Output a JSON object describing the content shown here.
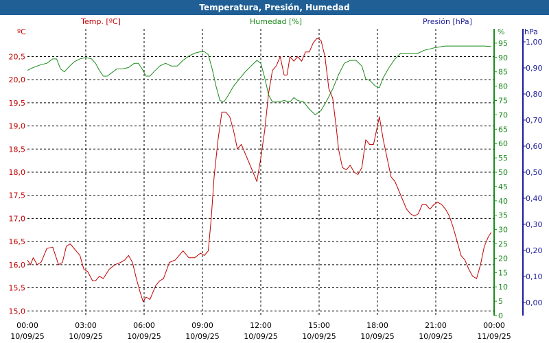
{
  "chart_data": {
    "type": "line",
    "title": "Temperatura, Presión, Humedad",
    "x_ticks": [
      {
        "time": "00:00",
        "date": "10/09/25"
      },
      {
        "time": "03:00",
        "date": "10/09/25"
      },
      {
        "time": "06:00",
        "date": "10/09/25"
      },
      {
        "time": "09:00",
        "date": "10/09/25"
      },
      {
        "time": "12:00",
        "date": "10/09/25"
      },
      {
        "time": "15:00",
        "date": "10/09/25"
      },
      {
        "time": "18:00",
        "date": "10/09/25"
      },
      {
        "time": "21:00",
        "date": "10/09/25"
      },
      {
        "time": "00:00",
        "date": "11/09/25"
      }
    ],
    "x_range_hours": [
      0,
      24
    ],
    "grid": true,
    "axes": {
      "temperature": {
        "label": "Temp. [ºC]",
        "unit": "ºC",
        "color": "#c00000",
        "range": [
          14.9,
          21.1
        ],
        "ticks": [
          "15,0",
          "15,5",
          "16,0",
          "16,5",
          "17,0",
          "17,5",
          "18,0",
          "18,5",
          "19,0",
          "19,5",
          "20,0",
          "20,5"
        ],
        "tick_values": [
          15.0,
          15.5,
          16.0,
          16.5,
          17.0,
          17.5,
          18.0,
          18.5,
          19.0,
          19.5,
          20.0,
          20.5
        ]
      },
      "humidity": {
        "label": "Humedad [%]",
        "unit": "%",
        "color": "#1a8a1a",
        "range": [
          0,
          100
        ],
        "ticks": [
          "0",
          "5",
          "10",
          "15",
          "20",
          "25",
          "30",
          "35",
          "40",
          "45",
          "50",
          "55",
          "60",
          "65",
          "70",
          "75",
          "80",
          "85",
          "90",
          "95"
        ],
        "tick_values": [
          0,
          5,
          10,
          15,
          20,
          25,
          30,
          35,
          40,
          45,
          50,
          55,
          60,
          65,
          70,
          75,
          80,
          85,
          90,
          95
        ]
      },
      "pressure": {
        "label": "Presión [hPa]",
        "unit": "hPa",
        "color": "#1a1a9a",
        "range": [
          -0.05,
          1.05
        ],
        "ticks": [
          "0,00",
          "0,10",
          "0,20",
          "0,30",
          "0,40",
          "0,50",
          "0,60",
          "0,70",
          "0,80",
          "0,90",
          "1,00"
        ],
        "tick_values": [
          0,
          0.1,
          0.2,
          0.3,
          0.4,
          0.5,
          0.6,
          0.7,
          0.8,
          0.9,
          1.0
        ]
      }
    },
    "series": [
      {
        "name": "Temp. [ºC]",
        "axis": "temperature",
        "points": [
          [
            0,
            16.1
          ],
          [
            0.15,
            16.0
          ],
          [
            0.3,
            16.15
          ],
          [
            0.5,
            16.0
          ],
          [
            0.7,
            16.05
          ],
          [
            1.0,
            16.35
          ],
          [
            1.3,
            16.38
          ],
          [
            1.6,
            16.0
          ],
          [
            1.8,
            16.05
          ],
          [
            2.0,
            16.4
          ],
          [
            2.2,
            16.45
          ],
          [
            2.5,
            16.3
          ],
          [
            2.7,
            16.2
          ],
          [
            2.9,
            15.9
          ],
          [
            3.1,
            15.85
          ],
          [
            3.35,
            15.65
          ],
          [
            3.5,
            15.65
          ],
          [
            3.7,
            15.75
          ],
          [
            3.9,
            15.7
          ],
          [
            4.2,
            15.9
          ],
          [
            4.5,
            16.0
          ],
          [
            4.8,
            16.05
          ],
          [
            5.0,
            16.1
          ],
          [
            5.2,
            16.2
          ],
          [
            5.4,
            16.05
          ],
          [
            5.6,
            15.7
          ],
          [
            5.8,
            15.4
          ],
          [
            5.95,
            15.2
          ],
          [
            6.1,
            15.3
          ],
          [
            6.3,
            15.25
          ],
          [
            6.6,
            15.55
          ],
          [
            6.8,
            15.65
          ],
          [
            7.0,
            15.7
          ],
          [
            7.3,
            16.05
          ],
          [
            7.6,
            16.1
          ],
          [
            7.8,
            16.2
          ],
          [
            8.0,
            16.3
          ],
          [
            8.3,
            16.15
          ],
          [
            8.6,
            16.15
          ],
          [
            8.9,
            16.25
          ],
          [
            9.1,
            16.2
          ],
          [
            9.3,
            16.3
          ],
          [
            9.45,
            17.0
          ],
          [
            9.6,
            17.9
          ],
          [
            9.8,
            18.7
          ],
          [
            10.0,
            19.3
          ],
          [
            10.2,
            19.3
          ],
          [
            10.4,
            19.2
          ],
          [
            10.6,
            18.9
          ],
          [
            10.8,
            18.5
          ],
          [
            11.0,
            18.6
          ],
          [
            11.3,
            18.3
          ],
          [
            11.6,
            18.0
          ],
          [
            11.8,
            17.8
          ],
          [
            12.0,
            18.3
          ],
          [
            12.2,
            18.9
          ],
          [
            12.4,
            19.7
          ],
          [
            12.6,
            20.2
          ],
          [
            12.8,
            20.3
          ],
          [
            13.0,
            20.5
          ],
          [
            13.2,
            20.1
          ],
          [
            13.35,
            20.1
          ],
          [
            13.5,
            20.5
          ],
          [
            13.7,
            20.4
          ],
          [
            13.9,
            20.5
          ],
          [
            14.1,
            20.4
          ],
          [
            14.3,
            20.6
          ],
          [
            14.5,
            20.6
          ],
          [
            14.7,
            20.8
          ],
          [
            14.9,
            20.9
          ],
          [
            15.1,
            20.85
          ],
          [
            15.3,
            20.5
          ],
          [
            15.5,
            19.8
          ],
          [
            15.7,
            19.6
          ],
          [
            15.9,
            18.9
          ],
          [
            16.0,
            18.5
          ],
          [
            16.2,
            18.1
          ],
          [
            16.4,
            18.05
          ],
          [
            16.6,
            18.15
          ],
          [
            16.8,
            18.0
          ],
          [
            17.0,
            17.95
          ],
          [
            17.2,
            18.1
          ],
          [
            17.4,
            18.7
          ],
          [
            17.6,
            18.6
          ],
          [
            17.8,
            18.6
          ],
          [
            18.0,
            19.0
          ],
          [
            18.1,
            19.2
          ],
          [
            18.3,
            18.7
          ],
          [
            18.5,
            18.3
          ],
          [
            18.7,
            17.9
          ],
          [
            18.9,
            17.8
          ],
          [
            19.1,
            17.6
          ],
          [
            19.3,
            17.4
          ],
          [
            19.5,
            17.2
          ],
          [
            19.7,
            17.1
          ],
          [
            19.9,
            17.05
          ],
          [
            20.1,
            17.1
          ],
          [
            20.3,
            17.3
          ],
          [
            20.5,
            17.3
          ],
          [
            20.7,
            17.2
          ],
          [
            20.9,
            17.3
          ],
          [
            21.1,
            17.35
          ],
          [
            21.3,
            17.3
          ],
          [
            21.5,
            17.2
          ],
          [
            21.7,
            17.05
          ],
          [
            21.9,
            16.8
          ],
          [
            22.1,
            16.5
          ],
          [
            22.3,
            16.2
          ],
          [
            22.5,
            16.1
          ],
          [
            22.7,
            15.9
          ],
          [
            22.9,
            15.75
          ],
          [
            23.1,
            15.7
          ],
          [
            23.3,
            16.0
          ],
          [
            23.5,
            16.4
          ],
          [
            23.7,
            16.6
          ],
          [
            23.85,
            16.7
          ]
        ]
      },
      {
        "name": "Humedad [%]",
        "axis": "humidity",
        "points": [
          [
            0,
            85.5
          ],
          [
            0.3,
            86.5
          ],
          [
            0.7,
            87.5
          ],
          [
            1.0,
            88.0
          ],
          [
            1.3,
            89.5
          ],
          [
            1.5,
            89.5
          ],
          [
            1.7,
            86.0
          ],
          [
            1.9,
            85.0
          ],
          [
            2.1,
            86.5
          ],
          [
            2.4,
            88.5
          ],
          [
            2.7,
            89.5
          ],
          [
            3.0,
            90.0
          ],
          [
            3.3,
            89.5
          ],
          [
            3.5,
            88.0
          ],
          [
            3.7,
            85.5
          ],
          [
            3.9,
            83.5
          ],
          [
            4.1,
            83.5
          ],
          [
            4.3,
            84.5
          ],
          [
            4.6,
            86.0
          ],
          [
            4.9,
            86.0
          ],
          [
            5.2,
            86.5
          ],
          [
            5.5,
            88.0
          ],
          [
            5.7,
            88.0
          ],
          [
            5.9,
            86.0
          ],
          [
            6.1,
            83.5
          ],
          [
            6.3,
            83.5
          ],
          [
            6.5,
            85.0
          ],
          [
            6.8,
            87.0
          ],
          [
            7.1,
            88.0
          ],
          [
            7.4,
            87.0
          ],
          [
            7.7,
            87.0
          ],
          [
            8.0,
            89.0
          ],
          [
            8.3,
            90.5
          ],
          [
            8.6,
            91.5
          ],
          [
            8.9,
            92.0
          ],
          [
            9.1,
            92.0
          ],
          [
            9.3,
            91.0
          ],
          [
            9.5,
            86.0
          ],
          [
            9.7,
            80.0
          ],
          [
            9.9,
            75.0
          ],
          [
            10.1,
            74.5
          ],
          [
            10.3,
            76.5
          ],
          [
            10.6,
            80.0
          ],
          [
            10.9,
            82.5
          ],
          [
            11.2,
            85.0
          ],
          [
            11.5,
            87.0
          ],
          [
            11.8,
            89.0
          ],
          [
            12.0,
            88.0
          ],
          [
            12.2,
            83.0
          ],
          [
            12.4,
            77.0
          ],
          [
            12.6,
            74.5
          ],
          [
            12.9,
            74.5
          ],
          [
            13.2,
            75.0
          ],
          [
            13.5,
            74.5
          ],
          [
            13.7,
            76.0
          ],
          [
            13.9,
            75.0
          ],
          [
            14.2,
            74.5
          ],
          [
            14.5,
            72.0
          ],
          [
            14.8,
            70.0
          ],
          [
            15.1,
            71.5
          ],
          [
            15.4,
            75.0
          ],
          [
            15.7,
            79.0
          ],
          [
            16.0,
            84.0
          ],
          [
            16.3,
            88.0
          ],
          [
            16.6,
            89.0
          ],
          [
            16.9,
            89.0
          ],
          [
            17.2,
            87.0
          ],
          [
            17.4,
            82.5
          ],
          [
            17.6,
            82.0
          ],
          [
            17.9,
            80.0
          ],
          [
            18.1,
            79.5
          ],
          [
            18.3,
            83.0
          ],
          [
            18.6,
            86.5
          ],
          [
            18.9,
            89.5
          ],
          [
            19.2,
            91.5
          ],
          [
            19.5,
            91.5
          ],
          [
            19.8,
            91.5
          ],
          [
            20.1,
            91.5
          ],
          [
            20.4,
            92.5
          ],
          [
            20.7,
            93.0
          ],
          [
            21.0,
            93.5
          ],
          [
            21.5,
            94.0
          ],
          [
            22.0,
            94.0
          ],
          [
            22.5,
            94.0
          ],
          [
            23.0,
            94.0
          ],
          [
            23.5,
            94.0
          ],
          [
            23.85,
            93.8
          ]
        ]
      }
    ]
  }
}
